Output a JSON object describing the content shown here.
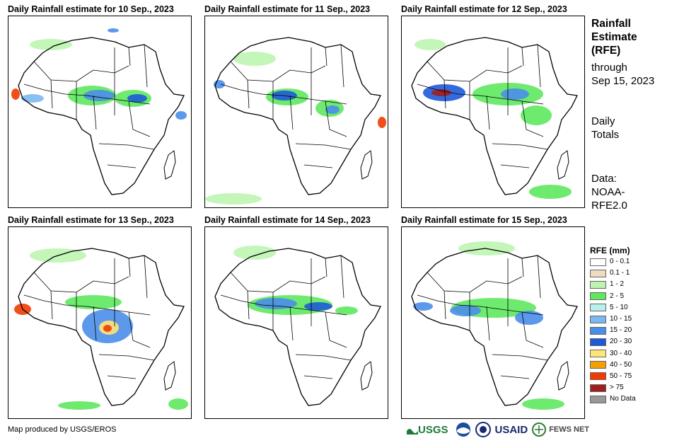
{
  "panels": [
    {
      "title": "Daily Rainfall estimate for 10 Sep., 2023"
    },
    {
      "title": "Daily Rainfall estimate for 11 Sep., 2023"
    },
    {
      "title": "Daily Rainfall estimate for 12 Sep., 2023"
    },
    {
      "title": "Daily Rainfall estimate for 13 Sep., 2023"
    },
    {
      "title": "Daily Rainfall estimate for 14 Sep., 2023"
    },
    {
      "title": "Daily Rainfall estimate for 15 Sep., 2023"
    }
  ],
  "sidebar": {
    "title_line1": "Rainfall",
    "title_line2": "Estimate",
    "title_line3": "(RFE)",
    "through": "through",
    "date": "Sep 15, 2023",
    "daily1": "Daily",
    "daily2": "Totals",
    "data1": "Data:",
    "data2": "NOAA-",
    "data3": "RFE2.0"
  },
  "legend": {
    "title": "RFE (mm)",
    "items": [
      {
        "label": "0 - 0.1",
        "color": "#ffffff"
      },
      {
        "label": "0.1 - 1",
        "color": "#ecdcc0"
      },
      {
        "label": "1 - 2",
        "color": "#bdf5b0"
      },
      {
        "label": "2 - 5",
        "color": "#5ee85e"
      },
      {
        "label": "5 - 10",
        "color": "#b8f0f0"
      },
      {
        "label": "10 - 15",
        "color": "#7cb8f0"
      },
      {
        "label": "15 - 20",
        "color": "#4a8ee8"
      },
      {
        "label": "20 - 30",
        "color": "#1e5ad8"
      },
      {
        "label": "30 - 40",
        "color": "#ffe478"
      },
      {
        "label": "40 - 50",
        "color": "#f5a000"
      },
      {
        "label": "50 - 75",
        "color": "#f03c00"
      },
      {
        "label": "> 75",
        "color": "#a01e1e"
      },
      {
        "label": "No Data",
        "color": "#999999"
      }
    ]
  },
  "footer": {
    "credit": "Map produced by USGS/EROS",
    "logo_usgs": "USGS",
    "logo_usaid": "USAID",
    "logo_fews": "FEWS NET"
  }
}
